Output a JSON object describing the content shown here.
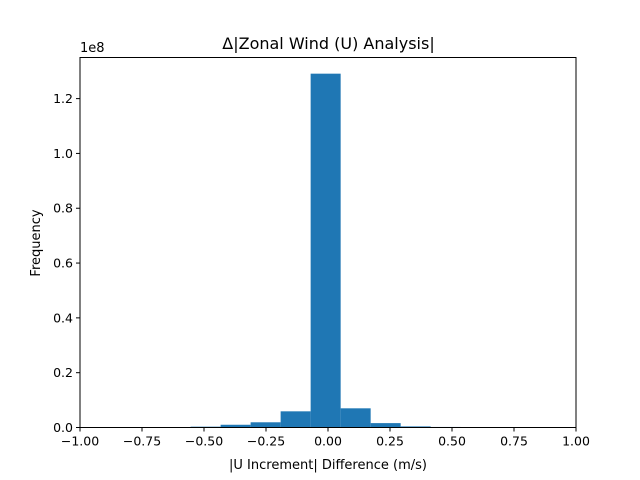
{
  "chart_data": {
    "type": "histogram",
    "title": "Δ|Zonal Wind (U) Analysis|",
    "xlabel": "|U Increment| Difference (m/s)",
    "ylabel": "Frequency",
    "y_offset_label": "1e8",
    "xlim": [
      -1.0,
      1.0
    ],
    "ylim": [
      0,
      1.35
    ],
    "x_ticks": [
      -1.0,
      -0.75,
      -0.5,
      -0.25,
      0.0,
      0.25,
      0.5,
      0.75,
      1.0
    ],
    "x_tick_labels": [
      "−1.00",
      "−0.75",
      "−0.50",
      "−0.25",
      "0.00",
      "0.25",
      "0.50",
      "0.75",
      "1.00"
    ],
    "y_ticks": [
      0.0,
      0.2,
      0.4,
      0.6,
      0.8,
      1.0,
      1.2
    ],
    "y_tick_labels": [
      "0.0",
      "0.2",
      "0.4",
      "0.6",
      "0.8",
      "1.0",
      "1.2"
    ],
    "bins": [
      -0.675,
      -0.554,
      -0.433,
      -0.312,
      -0.191,
      -0.07,
      0.051,
      0.172,
      0.293,
      0.414,
      0.535
    ],
    "values": [
      0.001,
      0.003,
      0.01,
      0.019,
      0.059,
      1.291,
      0.07,
      0.016,
      0.004,
      0.002
    ],
    "bar_color": "#1f77b4",
    "grid": false
  }
}
